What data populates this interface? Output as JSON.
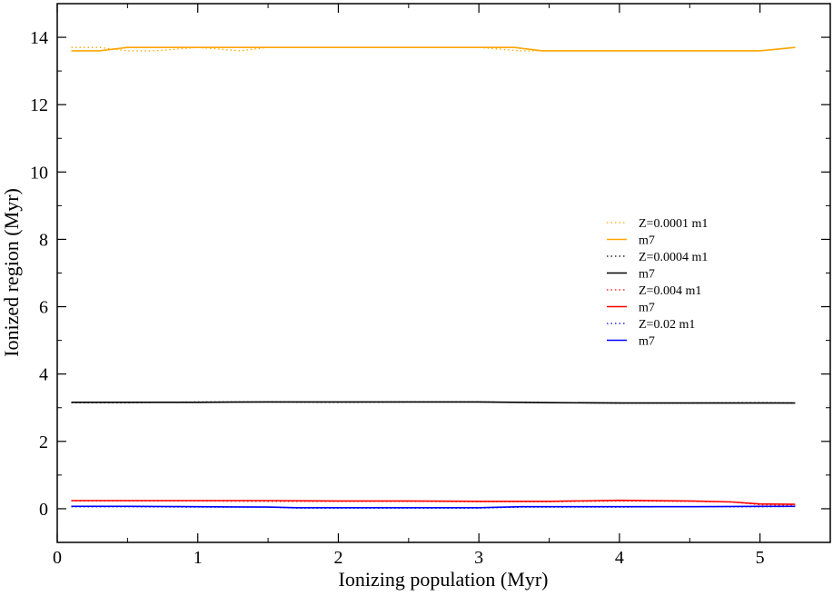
{
  "chart_data": {
    "type": "line",
    "xlabel": "Ionizing population (Myr)",
    "ylabel": "Ionized region (Myr)",
    "xlim": [
      0,
      5.5
    ],
    "ylim": [
      -1,
      15
    ],
    "xticks": [
      0,
      1,
      2,
      3,
      4,
      5
    ],
    "yticks": [
      0,
      2,
      4,
      6,
      8,
      10,
      12,
      14
    ],
    "grid": false,
    "legend_position": "center-right",
    "series": [
      {
        "name": "Z=0.0001 m1",
        "color": "#ffa500",
        "style": "dotted",
        "x": [
          0.1,
          0.3,
          0.5,
          0.7,
          1.0,
          1.3,
          1.5,
          2.0,
          2.5,
          3.0,
          3.3,
          3.5,
          4.0,
          4.5,
          5.0,
          5.25
        ],
        "y": [
          13.7,
          13.7,
          13.6,
          13.6,
          13.7,
          13.6,
          13.7,
          13.7,
          13.7,
          13.7,
          13.6,
          13.6,
          13.6,
          13.6,
          13.6,
          13.7
        ]
      },
      {
        "name": "m7",
        "color": "#ffa500",
        "style": "solid",
        "x": [
          0.1,
          0.3,
          0.5,
          1.0,
          1.5,
          2.0,
          2.5,
          3.0,
          3.25,
          3.45,
          4.0,
          4.5,
          5.0,
          5.25
        ],
        "y": [
          13.6,
          13.6,
          13.7,
          13.7,
          13.7,
          13.7,
          13.7,
          13.7,
          13.7,
          13.6,
          13.6,
          13.6,
          13.6,
          13.7
        ]
      },
      {
        "name": "Z=0.0004 m1",
        "color": "#000000",
        "style": "dotted",
        "x": [
          0.1,
          0.5,
          1.0,
          1.5,
          2.0,
          2.5,
          3.0,
          3.5,
          4.0,
          4.5,
          5.0,
          5.25
        ],
        "y": [
          3.15,
          3.15,
          3.17,
          3.17,
          3.16,
          3.17,
          3.17,
          3.15,
          3.14,
          3.14,
          3.15,
          3.14
        ]
      },
      {
        "name": "m7",
        "color": "#000000",
        "style": "solid",
        "x": [
          0.1,
          0.5,
          1.0,
          1.5,
          2.0,
          2.5,
          3.0,
          3.5,
          4.0,
          4.5,
          5.0,
          5.25
        ],
        "y": [
          3.16,
          3.16,
          3.16,
          3.17,
          3.17,
          3.17,
          3.17,
          3.15,
          3.14,
          3.14,
          3.14,
          3.14
        ]
      },
      {
        "name": "Z=0.004 m1",
        "color": "#ff0000",
        "style": "dotted",
        "x": [
          0.1,
          0.5,
          1.0,
          1.5,
          2.0,
          2.5,
          3.0,
          3.5,
          4.0,
          4.5,
          4.8,
          5.0,
          5.25
        ],
        "y": [
          0.23,
          0.23,
          0.23,
          0.22,
          0.22,
          0.22,
          0.21,
          0.21,
          0.23,
          0.22,
          0.2,
          0.12,
          0.1
        ]
      },
      {
        "name": "m7",
        "color": "#ff0000",
        "style": "solid",
        "x": [
          0.1,
          0.5,
          1.0,
          1.5,
          2.0,
          2.5,
          3.0,
          3.5,
          4.0,
          4.5,
          4.8,
          5.0,
          5.25
        ],
        "y": [
          0.24,
          0.24,
          0.24,
          0.24,
          0.23,
          0.23,
          0.22,
          0.22,
          0.25,
          0.23,
          0.2,
          0.14,
          0.13
        ]
      },
      {
        "name": "Z=0.02 m1",
        "color": "#0000ff",
        "style": "dotted",
        "x": [
          0.1,
          0.5,
          1.0,
          1.5,
          1.7,
          2.0,
          2.5,
          3.0,
          3.3,
          4.0,
          4.5,
          5.0,
          5.25
        ],
        "y": [
          0.06,
          0.06,
          0.05,
          0.05,
          0.02,
          0.02,
          0.02,
          0.02,
          0.05,
          0.05,
          0.06,
          0.06,
          0.07
        ]
      },
      {
        "name": "m7",
        "color": "#0000ff",
        "style": "solid",
        "x": [
          0.1,
          0.5,
          1.0,
          1.5,
          1.7,
          2.0,
          2.5,
          3.0,
          3.3,
          4.0,
          4.5,
          5.0,
          5.25
        ],
        "y": [
          0.07,
          0.07,
          0.06,
          0.05,
          0.03,
          0.03,
          0.03,
          0.03,
          0.06,
          0.06,
          0.06,
          0.07,
          0.07
        ]
      }
    ]
  }
}
